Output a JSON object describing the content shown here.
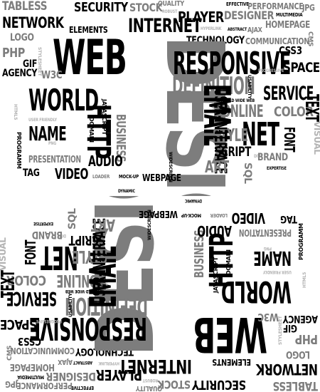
{
  "words": [
    "TABLESS",
    "SECURITY",
    "STOCK",
    "QUALITY",
    "ROBUST",
    "EFFECTIVE",
    "PERFORMANCE",
    "JPG",
    "PLAYER",
    "DESIGNER",
    "MULTIMEDIA",
    "NETWORK",
    "INTERNET",
    "ELEMENTS",
    "HYPERLINK",
    "ABSTRACT",
    "AJAX",
    "HOMEPAGE",
    "LOGO",
    "TECHNOLOGY",
    "COMMUNICATION",
    "CMS",
    "WEB",
    "DESIGN",
    "PHP",
    "GIF",
    "STYLESHEET",
    "CSS3",
    "RESPONSIVE",
    "SPACE",
    "AGENCY",
    "W3C",
    "PROGRESSIVE",
    "DEFINITION",
    "USABILITY",
    "WORLD",
    "SERVICE",
    "HTML5",
    "WORLD WIDE WEB",
    "ONLINE",
    "COLOR",
    "EMAIL",
    "SEO",
    "USER FRIENDLY",
    "HTTP",
    "NAME",
    "JAVASCRIPT",
    "NET",
    "STYLE",
    "TEXT",
    "VISUAL",
    "PROGRAMM",
    "DOMAIN",
    "BUSINESS",
    "USER-INTERFACE",
    "SCRIPT",
    "FONT",
    "DIV",
    "BRAND",
    "PNG",
    "PRESENTATION",
    "TAG",
    "VIDEO",
    "AUDIO",
    "ART",
    "SQL",
    "EXPERTISE",
    "LOADER",
    "MOCK-UP",
    "WEBPAGE",
    "DYNAMIC",
    "WIDESCREEN"
  ],
  "colors": {
    "black": "#000000",
    "gray": "#7d7d7d",
    "light_gray": "#b3b3b3",
    "background": "#ffffff"
  }
}
